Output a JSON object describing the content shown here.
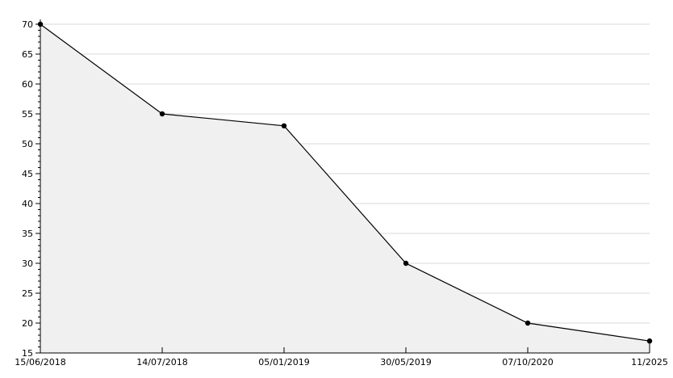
{
  "chart_data": {
    "type": "area",
    "title": "",
    "xlabel": "",
    "ylabel": "",
    "categories": [
      "15/06/2018",
      "14/07/2018",
      "05/01/2019",
      "30/05/2019",
      "07/10/2020",
      "11/2025"
    ],
    "values": [
      70,
      55,
      53,
      30,
      20,
      17
    ],
    "ylim": [
      15,
      70
    ],
    "y_major_step": 5,
    "y_minor_step": 1,
    "y_tick_labels": [
      "15",
      "20",
      "25",
      "30",
      "35",
      "40",
      "45",
      "50",
      "55",
      "60",
      "65",
      "70"
    ],
    "grid": "horizontal-major",
    "legend_position": "none",
    "colors": {
      "background": "#ffffff",
      "gridline": "#d9d9d9",
      "area_fill": "#f0f0f0",
      "line": "#000000",
      "marker": "#000000",
      "axis": "#000000",
      "label_text": "#000000"
    }
  }
}
